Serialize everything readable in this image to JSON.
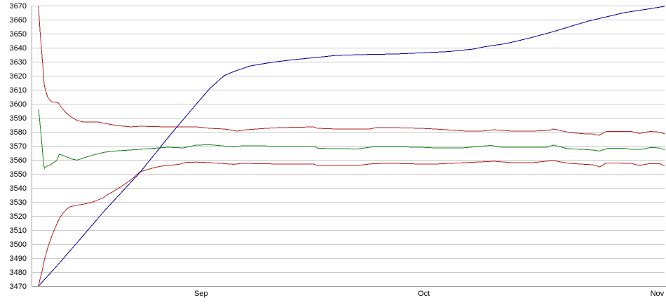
{
  "chart_data": {
    "type": "line",
    "title": "",
    "legend": "none",
    "grid": true,
    "background": "#ffffff",
    "colors": {
      "gridline": "#c9c9c9",
      "axis": "#a0a0a0",
      "tick_text": "#000000",
      "red": "#b22222",
      "green": "#148714",
      "blue": "#0000a0"
    },
    "y_axis": {
      "min": 3470,
      "max": 3670,
      "tick_step": 10,
      "tick_labels": [
        "3470",
        "3480",
        "3490",
        "3500",
        "3510",
        "3520",
        "3530",
        "3540",
        "3550",
        "3560",
        "3570",
        "3580",
        "3590",
        "3600",
        "3610",
        "3620",
        "3630",
        "3640",
        "3650",
        "3660",
        "3670"
      ]
    },
    "x_axis": {
      "range_days": [
        0,
        84
      ],
      "ticks": [
        {
          "label": "Sep",
          "day": 21.8
        },
        {
          "label": "Oct",
          "day": 51.7
        },
        {
          "label": "Nov",
          "day": 83.0
        }
      ]
    },
    "series": [
      {
        "name": "upper_red_band",
        "color_key": "red",
        "points": [
          [
            0,
            3670
          ],
          [
            0.1,
            3660
          ],
          [
            0.2,
            3652
          ],
          [
            0.3,
            3645
          ],
          [
            0.4,
            3638
          ],
          [
            0.6,
            3625
          ],
          [
            0.75,
            3614
          ],
          [
            0.9,
            3610
          ],
          [
            1.2,
            3605
          ],
          [
            1.7,
            3601.5
          ],
          [
            2.4,
            3601
          ],
          [
            2.7,
            3600.5
          ],
          [
            2.9,
            3598.5
          ],
          [
            3.6,
            3594
          ],
          [
            4.4,
            3590.5
          ],
          [
            5.2,
            3588
          ],
          [
            6.1,
            3587
          ],
          [
            8,
            3587
          ],
          [
            8.9,
            3586
          ],
          [
            10.5,
            3584.5
          ],
          [
            12.4,
            3583.5
          ],
          [
            13.6,
            3584
          ],
          [
            17.1,
            3583.5
          ],
          [
            19.3,
            3583.5
          ],
          [
            21.2,
            3583.5
          ],
          [
            23,
            3582.5
          ],
          [
            24.9,
            3582
          ],
          [
            26.6,
            3580.5
          ],
          [
            27.9,
            3581.5
          ],
          [
            30.6,
            3582.5
          ],
          [
            32.5,
            3583
          ],
          [
            36.9,
            3583.5
          ],
          [
            37.4,
            3582.5
          ],
          [
            40,
            3582
          ],
          [
            44.4,
            3582
          ],
          [
            45.3,
            3583
          ],
          [
            47.5,
            3583
          ],
          [
            51.3,
            3582.5
          ],
          [
            53.2,
            3582
          ],
          [
            57.4,
            3580.5
          ],
          [
            59.5,
            3580.5
          ],
          [
            61.1,
            3581.5
          ],
          [
            63.5,
            3580.5
          ],
          [
            66.3,
            3580.5
          ],
          [
            68.5,
            3581
          ],
          [
            69.1,
            3582
          ],
          [
            71.2,
            3579.5
          ],
          [
            73.4,
            3578.5
          ],
          [
            74.3,
            3578.5
          ],
          [
            75.2,
            3577.5
          ],
          [
            76.2,
            3580.3
          ],
          [
            79.5,
            3580.3
          ],
          [
            80.6,
            3578.8
          ],
          [
            82,
            3580.2
          ],
          [
            83,
            3580
          ],
          [
            84,
            3578.6
          ]
        ]
      },
      {
        "name": "green_mid_line",
        "color_key": "green",
        "points": [
          [
            0,
            3596
          ],
          [
            0.3,
            3580
          ],
          [
            0.5,
            3568
          ],
          [
            0.7,
            3556
          ],
          [
            0.8,
            3554
          ],
          [
            1.1,
            3555.5
          ],
          [
            1.6,
            3556.5
          ],
          [
            2.4,
            3559.5
          ],
          [
            2.8,
            3564
          ],
          [
            3.6,
            3562.5
          ],
          [
            4.5,
            3560.5
          ],
          [
            5.2,
            3559.8
          ],
          [
            6.1,
            3561.5
          ],
          [
            7.7,
            3564
          ],
          [
            8.9,
            3565.5
          ],
          [
            10.8,
            3566.5
          ],
          [
            13.6,
            3567.5
          ],
          [
            17.4,
            3569
          ],
          [
            19.4,
            3568.5
          ],
          [
            21.2,
            3570.5
          ],
          [
            23,
            3570.8
          ],
          [
            26.2,
            3569.2
          ],
          [
            27.3,
            3570
          ],
          [
            32.5,
            3569.8
          ],
          [
            36.9,
            3569.8
          ],
          [
            37.5,
            3568.2
          ],
          [
            42.8,
            3567.8
          ],
          [
            44.9,
            3569.3
          ],
          [
            47.5,
            3569.3
          ],
          [
            51.3,
            3569
          ],
          [
            53.2,
            3568.5
          ],
          [
            56.9,
            3568.5
          ],
          [
            60.7,
            3570.3
          ],
          [
            62.1,
            3569
          ],
          [
            68.2,
            3569
          ],
          [
            69.1,
            3570.5
          ],
          [
            71,
            3568
          ],
          [
            72.9,
            3567.5
          ],
          [
            74.3,
            3567
          ],
          [
            75.3,
            3566.3
          ],
          [
            76.4,
            3568.3
          ],
          [
            78.6,
            3568.2
          ],
          [
            79.8,
            3567.4
          ],
          [
            80.9,
            3567.5
          ],
          [
            82,
            3568.7
          ],
          [
            83.2,
            3568.6
          ],
          [
            84,
            3567.2
          ]
        ]
      },
      {
        "name": "lower_red_band",
        "color_key": "red",
        "points": [
          [
            0,
            3470
          ],
          [
            0.2,
            3475
          ],
          [
            0.5,
            3481
          ],
          [
            0.75,
            3488
          ],
          [
            1.1,
            3495
          ],
          [
            1.4,
            3500
          ],
          [
            1.8,
            3506
          ],
          [
            2.2,
            3511
          ],
          [
            2.5,
            3515
          ],
          [
            2.9,
            3519
          ],
          [
            3.3,
            3522
          ],
          [
            3.8,
            3525
          ],
          [
            4.2,
            3526.5
          ],
          [
            4.9,
            3527.5
          ],
          [
            5.6,
            3528
          ],
          [
            6.6,
            3529
          ],
          [
            7.3,
            3530
          ],
          [
            8,
            3531.5
          ],
          [
            8.7,
            3533
          ],
          [
            9.2,
            3535
          ],
          [
            9.9,
            3537
          ],
          [
            10.8,
            3540
          ],
          [
            11.8,
            3543.5
          ],
          [
            12.7,
            3547
          ],
          [
            13.6,
            3551.5
          ],
          [
            14.6,
            3553
          ],
          [
            15.5,
            3554.5
          ],
          [
            16.5,
            3555.5
          ],
          [
            17.4,
            3556
          ],
          [
            18.8,
            3556.8
          ],
          [
            19.8,
            3558.2
          ],
          [
            21.2,
            3558.4
          ],
          [
            23,
            3558
          ],
          [
            26.2,
            3556.8
          ],
          [
            27.3,
            3557.5
          ],
          [
            32.5,
            3557
          ],
          [
            36.9,
            3557
          ],
          [
            37.4,
            3556
          ],
          [
            42.8,
            3556
          ],
          [
            44.9,
            3557.3
          ],
          [
            47.5,
            3557.5
          ],
          [
            51.3,
            3557
          ],
          [
            53.2,
            3557
          ],
          [
            57.2,
            3558
          ],
          [
            61.1,
            3559
          ],
          [
            63.5,
            3558
          ],
          [
            66.3,
            3558
          ],
          [
            69,
            3559.5
          ],
          [
            71.2,
            3557.5
          ],
          [
            74.3,
            3556.5
          ],
          [
            75.3,
            3555
          ],
          [
            76.2,
            3557.8
          ],
          [
            79.5,
            3557.5
          ],
          [
            80.6,
            3556
          ],
          [
            82,
            3557.3
          ],
          [
            83.3,
            3557.3
          ],
          [
            84,
            3555.8
          ]
        ]
      },
      {
        "name": "blue_trend_line",
        "color_key": "blue",
        "points": [
          [
            0,
            3470
          ],
          [
            2.4,
            3484
          ],
          [
            4.2,
            3495
          ],
          [
            8.9,
            3524
          ],
          [
            13.6,
            3551
          ],
          [
            17.7,
            3578
          ],
          [
            21.2,
            3600
          ],
          [
            23,
            3611
          ],
          [
            24.9,
            3620
          ],
          [
            26.2,
            3623
          ],
          [
            28.4,
            3627
          ],
          [
            31.2,
            3629.5
          ],
          [
            34.3,
            3631.5
          ],
          [
            37.2,
            3633
          ],
          [
            40,
            3634.5
          ],
          [
            43,
            3635
          ],
          [
            45.6,
            3635.3
          ],
          [
            48,
            3635.5
          ],
          [
            51.3,
            3636.3
          ],
          [
            55,
            3637.2
          ],
          [
            58.3,
            3639
          ],
          [
            59.7,
            3640.5
          ],
          [
            62.8,
            3643
          ],
          [
            66,
            3647
          ],
          [
            69.1,
            3651.5
          ],
          [
            72.2,
            3656.5
          ],
          [
            73.8,
            3659
          ],
          [
            75.4,
            3661
          ],
          [
            78.6,
            3665
          ],
          [
            81.7,
            3667.5
          ],
          [
            84,
            3669.5
          ]
        ]
      }
    ]
  }
}
